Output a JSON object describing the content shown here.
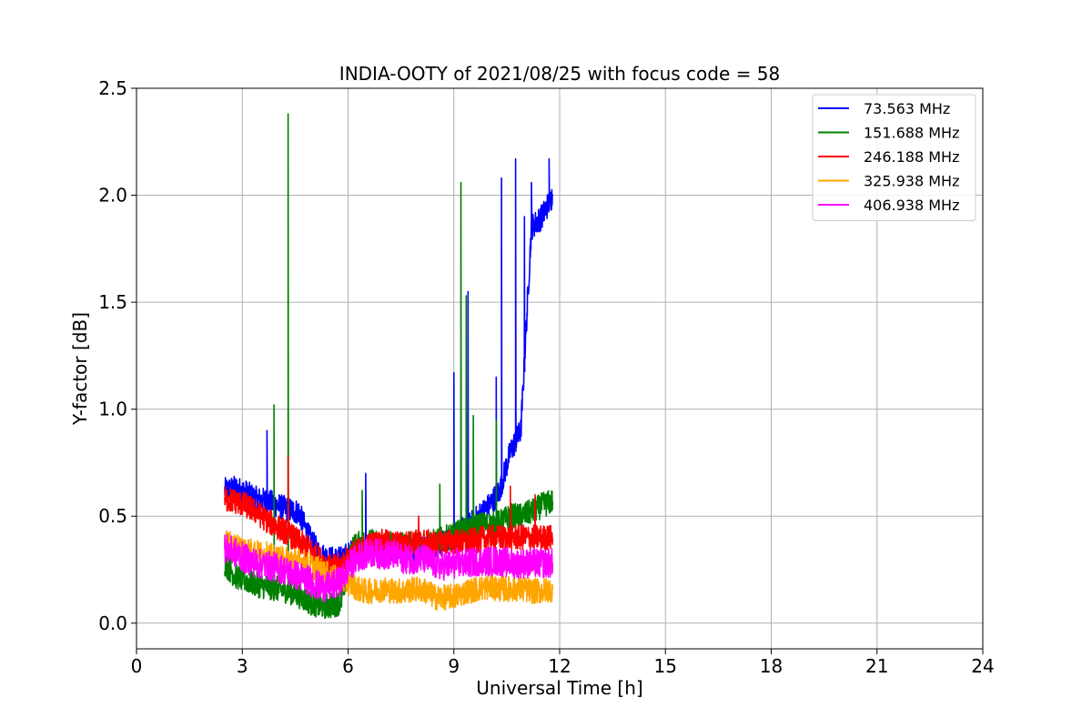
{
  "chart_data": {
    "type": "line",
    "title": "INDIA-OOTY of 2021/08/25 with focus code = 58",
    "xlabel": "Universal Time [h]",
    "ylabel": "Y-factor [dB]",
    "xlim": [
      0,
      24
    ],
    "ylim": [
      -0.12,
      2.5
    ],
    "xticks": [
      "0",
      "3",
      "6",
      "9",
      "12",
      "15",
      "18",
      "21",
      "24"
    ],
    "yticks": [
      "0.0",
      "0.5",
      "1.0",
      "1.5",
      "2.0",
      "2.5"
    ],
    "grid": true,
    "legend_position": "top-right",
    "series": [
      {
        "name": "  73.563 MHz",
        "color": "#0000ff",
        "x": [
          2.5,
          2.8,
          3.1,
          3.4,
          3.7,
          4.0,
          4.3,
          4.6,
          4.9,
          5.2,
          5.5,
          5.8,
          6.1,
          6.4,
          6.7,
          7.0,
          7.3,
          7.6,
          7.9,
          8.2,
          8.5,
          8.8,
          9.1,
          9.4,
          9.7,
          10.0,
          10.3,
          10.6,
          10.9,
          11.2,
          11.5,
          11.8
        ],
        "values": [
          0.62,
          0.63,
          0.61,
          0.58,
          0.57,
          0.55,
          0.53,
          0.52,
          0.4,
          0.32,
          0.3,
          0.3,
          0.33,
          0.35,
          0.35,
          0.34,
          0.35,
          0.35,
          0.35,
          0.36,
          0.36,
          0.38,
          0.42,
          0.45,
          0.5,
          0.55,
          0.62,
          0.8,
          0.9,
          1.85,
          1.9,
          2.0
        ],
        "spikes": [
          {
            "x": 3.7,
            "y": 0.9
          },
          {
            "x": 6.5,
            "y": 0.7
          },
          {
            "x": 9.0,
            "y": 1.17
          },
          {
            "x": 9.4,
            "y": 1.55
          },
          {
            "x": 10.2,
            "y": 1.15
          },
          {
            "x": 10.35,
            "y": 2.08
          },
          {
            "x": 10.75,
            "y": 2.17
          },
          {
            "x": 11.0,
            "y": 1.9
          },
          {
            "x": 11.2,
            "y": 2.06
          },
          {
            "x": 11.7,
            "y": 2.17
          }
        ]
      },
      {
        "name": "151.688 MHz",
        "color": "#008000",
        "x": [
          2.5,
          2.8,
          3.1,
          3.4,
          3.7,
          4.0,
          4.3,
          4.6,
          4.9,
          5.2,
          5.5,
          5.8,
          6.1,
          6.4,
          6.7,
          7.0,
          7.3,
          7.6,
          7.9,
          8.2,
          8.5,
          8.8,
          9.1,
          9.4,
          9.7,
          10.0,
          10.3,
          10.6,
          10.9,
          11.2,
          11.5,
          11.8
        ],
        "values": [
          0.28,
          0.22,
          0.2,
          0.18,
          0.17,
          0.16,
          0.15,
          0.13,
          0.1,
          0.08,
          0.08,
          0.1,
          0.35,
          0.38,
          0.38,
          0.37,
          0.37,
          0.36,
          0.37,
          0.38,
          0.38,
          0.4,
          0.42,
          0.44,
          0.46,
          0.46,
          0.47,
          0.5,
          0.5,
          0.52,
          0.55,
          0.57
        ],
        "spikes": [
          {
            "x": 3.9,
            "y": 1.02
          },
          {
            "x": 4.3,
            "y": 2.38
          },
          {
            "x": 6.4,
            "y": 0.62
          },
          {
            "x": 8.6,
            "y": 0.65
          },
          {
            "x": 9.2,
            "y": 2.06
          },
          {
            "x": 9.35,
            "y": 1.53
          },
          {
            "x": 9.55,
            "y": 0.97
          },
          {
            "x": 10.2,
            "y": 0.95
          }
        ]
      },
      {
        "name": "246.188 MHz",
        "color": "#ff0000",
        "x": [
          2.5,
          2.8,
          3.1,
          3.4,
          3.7,
          4.0,
          4.3,
          4.6,
          4.9,
          5.2,
          5.5,
          5.8,
          6.1,
          6.4,
          6.7,
          7.0,
          7.3,
          7.6,
          7.9,
          8.2,
          8.5,
          8.8,
          9.1,
          9.4,
          9.7,
          10.0,
          10.3,
          10.6,
          10.9,
          11.2,
          11.5,
          11.8
        ],
        "values": [
          0.58,
          0.57,
          0.55,
          0.52,
          0.48,
          0.45,
          0.42,
          0.38,
          0.35,
          0.3,
          0.26,
          0.27,
          0.32,
          0.35,
          0.37,
          0.38,
          0.37,
          0.37,
          0.38,
          0.38,
          0.37,
          0.38,
          0.38,
          0.38,
          0.39,
          0.4,
          0.4,
          0.4,
          0.4,
          0.4,
          0.4,
          0.4
        ],
        "spikes": [
          {
            "x": 4.3,
            "y": 0.78
          },
          {
            "x": 8.0,
            "y": 0.5
          },
          {
            "x": 10.6,
            "y": 0.64
          },
          {
            "x": 11.3,
            "y": 0.6
          }
        ]
      },
      {
        "name": "325.938 MHz",
        "color": "#ffa500",
        "x": [
          2.5,
          2.8,
          3.1,
          3.4,
          3.7,
          4.0,
          4.3,
          4.6,
          4.9,
          5.2,
          5.5,
          5.8,
          6.1,
          6.4,
          6.7,
          7.0,
          7.3,
          7.6,
          7.9,
          8.2,
          8.5,
          8.8,
          9.1,
          9.4,
          9.7,
          10.0,
          10.3,
          10.6,
          10.9,
          11.2,
          11.5,
          11.8
        ],
        "values": [
          0.38,
          0.36,
          0.35,
          0.33,
          0.32,
          0.3,
          0.3,
          0.29,
          0.27,
          0.25,
          0.22,
          0.2,
          0.18,
          0.15,
          0.15,
          0.16,
          0.15,
          0.15,
          0.16,
          0.15,
          0.12,
          0.12,
          0.13,
          0.15,
          0.16,
          0.17,
          0.16,
          0.16,
          0.16,
          0.15,
          0.15,
          0.16
        ],
        "spikes": []
      },
      {
        "name": "406.938 MHz",
        "color": "#ff00ff",
        "x": [
          2.5,
          2.8,
          3.1,
          3.4,
          3.7,
          4.0,
          4.3,
          4.6,
          4.9,
          5.2,
          5.5,
          5.8,
          6.1,
          6.4,
          6.7,
          7.0,
          7.3,
          7.6,
          7.9,
          8.2,
          8.5,
          8.8,
          9.1,
          9.4,
          9.7,
          10.0,
          10.3,
          10.6,
          10.9,
          11.2,
          11.5,
          11.8
        ],
        "values": [
          0.35,
          0.33,
          0.3,
          0.28,
          0.27,
          0.26,
          0.24,
          0.22,
          0.2,
          0.17,
          0.17,
          0.2,
          0.28,
          0.32,
          0.33,
          0.32,
          0.32,
          0.3,
          0.3,
          0.3,
          0.27,
          0.27,
          0.28,
          0.28,
          0.29,
          0.29,
          0.29,
          0.28,
          0.28,
          0.28,
          0.28,
          0.28
        ],
        "spikes": []
      }
    ]
  }
}
